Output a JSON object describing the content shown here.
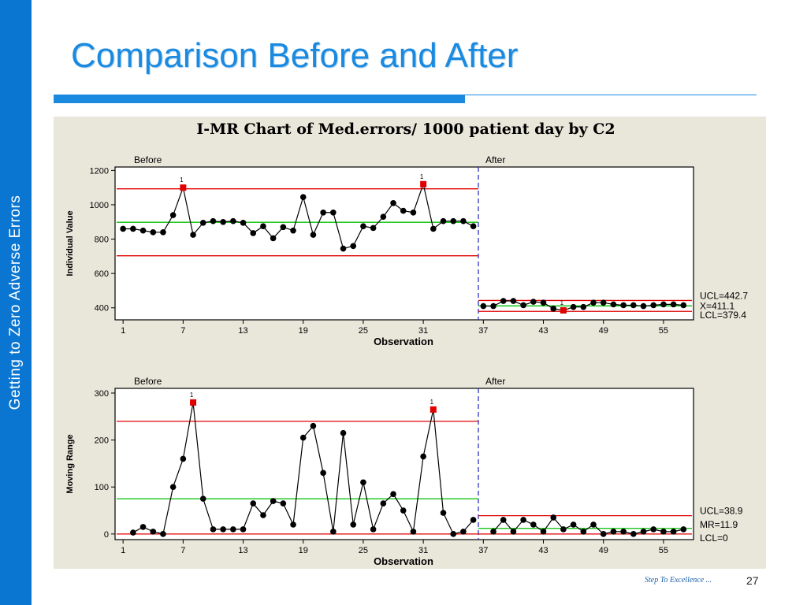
{
  "slide": {
    "title": "Comparison Before and After",
    "side_text": "Getting to Zero Adverse Errors",
    "footer_tag": "Step To Excellence ...",
    "page_number": "27"
  },
  "colors": {
    "brand": "#1a8ae0",
    "sidebar": "#0a76d2",
    "limit_line": "#e00000",
    "center_line": "#00c000",
    "point": "#000000",
    "flag_point": "#e00000",
    "stage_divider": "#3030c0"
  },
  "chart_data": {
    "type": "line",
    "title": "I-MR Chart of Med.errors/ 1000 patient day by C2",
    "stage_split_after": 36,
    "panels": [
      {
        "name": "individual",
        "ylabel": "Individual Value",
        "xlabel": "Observation",
        "ylim": [
          330,
          1220
        ],
        "yticks": [
          400,
          600,
          800,
          1000,
          1200
        ],
        "stages": [
          "Before",
          "After"
        ],
        "x": [
          1,
          2,
          3,
          4,
          5,
          6,
          7,
          8,
          9,
          10,
          11,
          12,
          13,
          14,
          15,
          16,
          17,
          18,
          19,
          20,
          21,
          22,
          23,
          24,
          25,
          26,
          27,
          28,
          29,
          30,
          31,
          32,
          33,
          34,
          35,
          36,
          37,
          38,
          39,
          40,
          41,
          42,
          43,
          44,
          45,
          46,
          47,
          48,
          49,
          50,
          51,
          52,
          53,
          54,
          55,
          56,
          57
        ],
        "values": [
          860,
          860,
          850,
          840,
          840,
          940,
          1100,
          825,
          895,
          905,
          900,
          905,
          895,
          835,
          875,
          805,
          870,
          850,
          1045,
          825,
          955,
          955,
          745,
          760,
          875,
          865,
          930,
          1010,
          965,
          955,
          1120,
          860,
          905,
          905,
          905,
          875,
          410,
          410,
          440,
          440,
          415,
          435,
          430,
          395,
          385,
          405,
          405,
          430,
          430,
          420,
          415,
          415,
          410,
          415,
          420,
          420,
          415
        ],
        "flags": [
          7,
          31,
          45
        ],
        "limits_before": {
          "ucl": 1093,
          "center": 898,
          "lcl": 703
        },
        "limits_after": {
          "ucl": 442.7,
          "center": 411.1,
          "lcl": 379.4
        },
        "limit_labels": [
          "UCL=442.7",
          "X=411.1",
          "LCL=379.4"
        ]
      },
      {
        "name": "moving-range",
        "ylabel": "Moving Range",
        "xlabel": "Observation",
        "ylim": [
          -12,
          310
        ],
        "yticks": [
          0,
          100,
          200,
          300
        ],
        "stages": [
          "Before",
          "After"
        ],
        "x": [
          2,
          3,
          4,
          5,
          6,
          7,
          8,
          9,
          10,
          11,
          12,
          13,
          14,
          15,
          16,
          17,
          18,
          19,
          20,
          21,
          22,
          23,
          24,
          25,
          26,
          27,
          28,
          29,
          30,
          31,
          32,
          33,
          34,
          35,
          36,
          38,
          39,
          40,
          41,
          42,
          43,
          44,
          45,
          46,
          47,
          48,
          49,
          50,
          51,
          52,
          53,
          54,
          55,
          56,
          57
        ],
        "values": [
          3,
          15,
          5,
          0,
          100,
          160,
          280,
          75,
          10,
          10,
          10,
          10,
          65,
          40,
          70,
          65,
          20,
          205,
          230,
          130,
          5,
          215,
          20,
          110,
          10,
          65,
          85,
          50,
          5,
          165,
          265,
          45,
          0,
          5,
          30,
          5,
          30,
          5,
          30,
          20,
          5,
          35,
          10,
          20,
          5,
          20,
          0,
          5,
          5,
          0,
          5,
          10,
          5,
          5,
          10
        ],
        "flags": [
          8,
          32
        ],
        "limits_before": {
          "ucl": 240,
          "center": 75,
          "lcl": 0
        },
        "limits_after": {
          "ucl": 38.9,
          "center": 11.9,
          "lcl": 0
        },
        "limit_labels": [
          "UCL=38.9",
          "MR=11.9",
          "LCL=0"
        ]
      }
    ],
    "xticks": [
      1,
      7,
      13,
      19,
      25,
      31,
      37,
      43,
      49,
      55
    ]
  }
}
